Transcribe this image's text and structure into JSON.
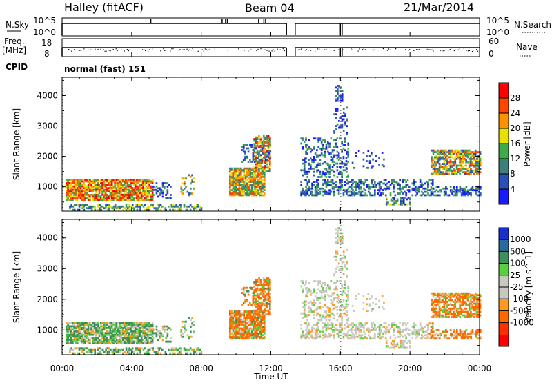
{
  "header": {
    "station": "Halley (fitACF)",
    "beam": "Beam 04",
    "date": "21/Mar/2014"
  },
  "top_panels": {
    "nsky_label": "N.Sky",
    "nsearch_label": "N.Search",
    "nsky_ticks": [
      "10^5",
      "10^0"
    ],
    "nsearch_ticks": [
      "10^5",
      "10^0"
    ],
    "freq_label": "Freq.",
    "freq_unit": "[MHz]",
    "freq_ticks": [
      "18",
      "8"
    ],
    "nave_label": "Nave",
    "nave_ticks": [
      "60",
      "0"
    ],
    "cpid_label": "CPID",
    "cpid_value": "normal (fast) 151"
  },
  "chart_data": [
    {
      "type": "heatmap",
      "title": "",
      "xlabel": "Time UT",
      "ylabel": "Slant Range [km]",
      "x_ticks": [
        "00:00",
        "04:00",
        "08:00",
        "12:00",
        "16:00",
        "20:00",
        "00:00"
      ],
      "y_ticks": [
        1000,
        2000,
        3000,
        4000
      ],
      "ylim": [
        200,
        4600
      ],
      "colorbar_label": "Power [dB]",
      "colorbar_ticks": [
        4,
        8,
        12,
        16,
        20,
        24,
        28
      ],
      "colors": [
        "#1a1aff",
        "#2a50b8",
        "#3f7f7a",
        "#3faa4a",
        "#e8e000",
        "#ff9000",
        "#ff4500",
        "#ff0000"
      ],
      "data_gap_hours": [
        [
          12.9,
          13.4
        ]
      ]
    },
    {
      "type": "heatmap",
      "title": "",
      "xlabel": "Time UT",
      "ylabel": "Slant Range [km]",
      "x_ticks": [
        "00:00",
        "04:00",
        "08:00",
        "12:00",
        "16:00",
        "20:00",
        "00:00"
      ],
      "y_ticks": [
        1000,
        2000,
        3000,
        4000
      ],
      "ylim": [
        200,
        4600
      ],
      "colorbar_label": "Velocity [m s^-1]",
      "colorbar_ticks": [
        "1000",
        "500",
        "100",
        "25",
        "-25",
        "-100",
        "-500",
        "-1000"
      ],
      "colors": [
        "#1a2fd0",
        "#2a6aa0",
        "#3f8f5a",
        "#5ad040",
        "#c8c8c0",
        "#c8c8c0",
        "#ff9a20",
        "#ff6a00",
        "#ff3000",
        "#ff0000"
      ]
    }
  ],
  "x_axis_label": "Time UT"
}
